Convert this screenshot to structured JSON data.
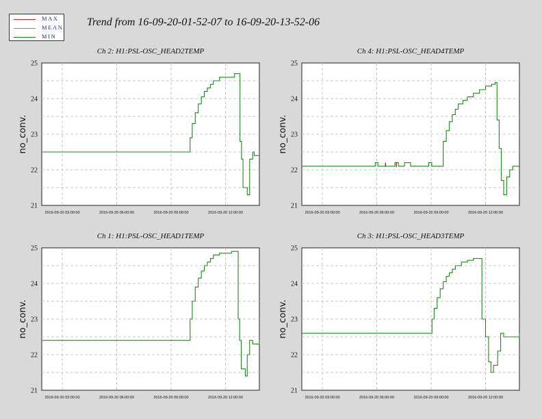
{
  "title": "Trend from 16-09-20-01-52-07 to 16-09-20-13-52-06",
  "legend": [
    {
      "label": "MAX",
      "color": "#d42020"
    },
    {
      "label": "MEAN",
      "color": "#c07070"
    },
    {
      "label": "MIN",
      "color": "#1a8a1a"
    }
  ],
  "chart_data": [
    {
      "type": "line",
      "title": "Ch 2: H1:PSL-OSC_HEAD2TEMP",
      "ylabel": "no_conv.",
      "ylim": [
        21,
        25
      ],
      "xlim": [
        "2016-09-20 01:52:07",
        "2016-09-20 13:52:06"
      ],
      "yticks": [
        21,
        22,
        23,
        24,
        25
      ],
      "xticks": [
        "2016-09-20 03:00:00",
        "2016-09-20 06:00:00",
        "2016-09-20 09:00:00",
        "2016-09-20 12:00:00"
      ],
      "grid": true,
      "series": [
        {
          "name": "MIN",
          "color": "#1a8a1a",
          "x": [
            "01:52",
            "10:00",
            "10:03",
            "10:10",
            "10:20",
            "10:30",
            "10:40",
            "10:50",
            "11:00",
            "11:10",
            "11:20",
            "11:40",
            "12:00",
            "12:30",
            "12:42",
            "12:48",
            "12:53",
            "12:58",
            "13:05",
            "13:12",
            "13:20",
            "13:30",
            "13:35",
            "13:40",
            "13:52"
          ],
          "y": [
            22.5,
            22.5,
            22.9,
            23.3,
            23.6,
            23.85,
            24.05,
            24.2,
            24.3,
            24.4,
            24.5,
            24.6,
            24.6,
            24.7,
            24.7,
            22.8,
            22.3,
            21.5,
            21.5,
            21.3,
            22.3,
            22.5,
            22.4,
            22.4,
            22.4
          ]
        }
      ]
    },
    {
      "type": "line",
      "title": "Ch 4: H1:PSL-OSC_HEAD4TEMP",
      "ylabel": "no_conv.",
      "ylim": [
        21,
        25
      ],
      "xlim": [
        "2016-09-20 01:52:07",
        "2016-09-20 13:52:06"
      ],
      "yticks": [
        21,
        22,
        23,
        24,
        25
      ],
      "xticks": [
        "2016-09-20 03:00:00",
        "2016-09-20 06:00:00",
        "2016-09-20 09:00:00",
        "2016-09-20 12:00:00"
      ],
      "grid": true,
      "series": [
        {
          "name": "MIN",
          "color": "#1a8a1a",
          "x": [
            "01:52",
            "05:53",
            "05:55",
            "06:02",
            "06:04",
            "06:57",
            "07:00",
            "07:10",
            "07:12",
            "07:30",
            "07:32",
            "07:50",
            "07:52",
            "08:50",
            "08:52",
            "09:00",
            "09:02",
            "09:30",
            "09:40",
            "09:50",
            "10:00",
            "10:10",
            "10:20",
            "10:30",
            "10:45",
            "11:00",
            "11:20",
            "11:40",
            "12:00",
            "12:20",
            "12:32",
            "12:38",
            "12:45",
            "12:52",
            "13:00",
            "13:10",
            "13:20",
            "13:30",
            "13:52"
          ],
          "y": [
            22.1,
            22.1,
            22.2,
            22.2,
            22.1,
            22.1,
            22.2,
            22.2,
            22.1,
            22.1,
            22.2,
            22.2,
            22.1,
            22.1,
            22.2,
            22.2,
            22.1,
            22.1,
            22.8,
            23.1,
            23.35,
            23.55,
            23.7,
            23.85,
            23.95,
            24.05,
            24.15,
            24.25,
            24.35,
            24.4,
            24.45,
            23.4,
            22.6,
            21.7,
            21.3,
            21.8,
            22.0,
            22.1,
            22.1
          ]
        },
        {
          "name": "MAX",
          "color": "#d42020",
          "x": [
            "06:29",
            "07:05"
          ],
          "y": [
            22.2,
            22.2
          ]
        }
      ]
    },
    {
      "type": "line",
      "title": "Ch 1: H1:PSL-OSC_HEAD1TEMP",
      "ylabel": "no_conv.",
      "ylim": [
        21,
        25
      ],
      "xlim": [
        "2016-09-20 01:52:07",
        "2016-09-20 13:52:06"
      ],
      "yticks": [
        21,
        22,
        23,
        24,
        25
      ],
      "xticks": [
        "2016-09-20 03:00:00",
        "2016-09-20 06:00:00",
        "2016-09-20 09:00:00",
        "2016-09-20 12:00:00"
      ],
      "grid": true,
      "series": [
        {
          "name": "MIN",
          "color": "#1a8a1a",
          "x": [
            "01:52",
            "10:00",
            "10:03",
            "10:10",
            "10:20",
            "10:30",
            "10:40",
            "10:50",
            "11:00",
            "11:10",
            "11:20",
            "11:40",
            "12:00",
            "12:20",
            "12:37",
            "12:42",
            "12:47",
            "12:52",
            "13:00",
            "13:06",
            "13:12",
            "13:20",
            "13:30",
            "13:40",
            "13:52"
          ],
          "y": [
            22.4,
            22.4,
            23.0,
            23.5,
            23.9,
            24.15,
            24.35,
            24.5,
            24.6,
            24.7,
            24.8,
            24.85,
            24.85,
            24.9,
            24.9,
            23.0,
            22.4,
            21.6,
            21.6,
            21.4,
            22.0,
            22.4,
            22.3,
            22.3,
            22.4
          ]
        }
      ]
    },
    {
      "type": "line",
      "title": "Ch 3: H1:PSL-OSC_HEAD3TEMP",
      "ylabel": "no_conv.",
      "ylim": [
        21,
        25
      ],
      "xlim": [
        "2016-09-20 01:52:07",
        "2016-09-20 13:52:06"
      ],
      "yticks": [
        21,
        22,
        23,
        24,
        25
      ],
      "xticks": [
        "2016-09-20 03:00:00",
        "2016-09-20 06:00:00",
        "2016-09-20 09:00:00",
        "2016-09-20 12:00:00"
      ],
      "grid": true,
      "series": [
        {
          "name": "MIN",
          "color": "#1a8a1a",
          "x": [
            "01:52",
            "09:00",
            "09:03",
            "09:10",
            "09:20",
            "09:30",
            "09:40",
            "09:50",
            "10:00",
            "10:10",
            "10:20",
            "10:40",
            "11:00",
            "11:20",
            "11:42",
            "11:48",
            "12:00",
            "12:10",
            "12:18",
            "12:26",
            "12:40",
            "12:50",
            "13:00",
            "13:20",
            "13:52"
          ],
          "y": [
            22.6,
            22.6,
            23.0,
            23.3,
            23.6,
            23.85,
            24.05,
            24.2,
            24.3,
            24.4,
            24.5,
            24.6,
            24.65,
            24.7,
            24.7,
            23.0,
            22.5,
            21.8,
            21.5,
            21.7,
            22.1,
            22.6,
            22.5,
            22.5,
            22.6
          ]
        }
      ]
    }
  ]
}
